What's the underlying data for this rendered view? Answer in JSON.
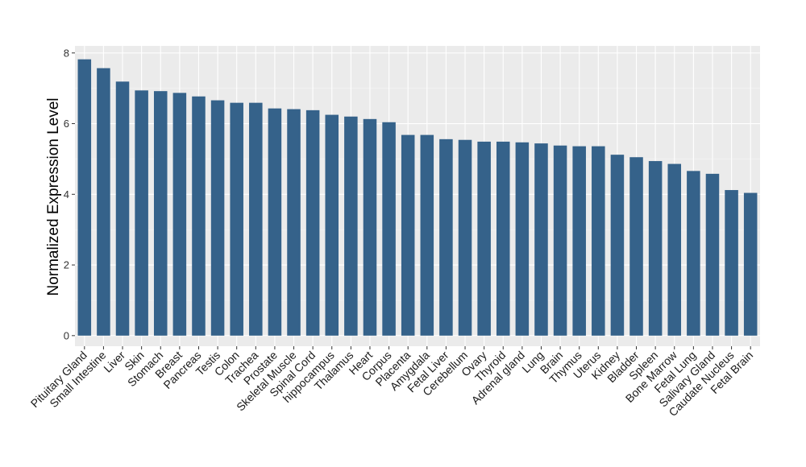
{
  "chart_data": {
    "type": "bar",
    "title": "",
    "xlabel": "",
    "ylabel": "Normalized Expression Level",
    "ylim": [
      -0.3,
      8.2
    ],
    "yticks": [
      0,
      2,
      4,
      6,
      8
    ],
    "grid": true,
    "legend": "none",
    "colors": {
      "bar": "#35628A",
      "panel": "#EBEBEB",
      "grid_major": "#FFFFFF",
      "grid_minor": "#F5F5F5",
      "tick": "#333333"
    },
    "categories": [
      "Pituitary Gland",
      "Small Intestine",
      "Liver",
      "Skin",
      "Stomach",
      "Breast",
      "Pancreas",
      "Testis",
      "Colon",
      "Trachea",
      "Prostate",
      "Skeletal Muscle",
      "Spinal Cord",
      "hippocampus",
      "Thalamus",
      "Heart",
      "Corpus",
      "Placenta",
      "Amygdala",
      "Fetal Liver",
      "Cerebellum",
      "Ovary",
      "Thyroid",
      "Adrenal gland",
      "Lung",
      "Brain",
      "Thymus",
      "Uterus",
      "Kidney",
      "Bladder",
      "Spleen",
      "Bone Marrow",
      "Fetal Lung",
      "Salivary Gland",
      "Caudate Nucleus",
      "Fetal Brain"
    ],
    "values": [
      7.82,
      7.57,
      7.19,
      6.94,
      6.92,
      6.87,
      6.77,
      6.66,
      6.59,
      6.59,
      6.43,
      6.41,
      6.38,
      6.25,
      6.2,
      6.13,
      6.04,
      5.68,
      5.68,
      5.56,
      5.54,
      5.49,
      5.49,
      5.47,
      5.44,
      5.38,
      5.36,
      5.36,
      5.12,
      5.05,
      4.94,
      4.86,
      4.66,
      4.58,
      4.12,
      4.04
    ]
  }
}
